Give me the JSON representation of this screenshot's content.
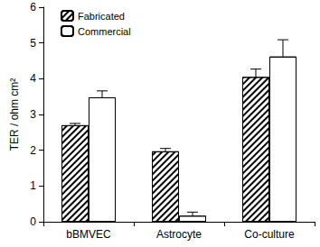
{
  "chart_data": {
    "type": "bar",
    "y_label": "TER / ohm cm²",
    "categories": [
      "bBMVEC",
      "Astrocyte",
      "Co-culture"
    ],
    "series": [
      {
        "name": "Fabricated",
        "color": "#ffffff",
        "values": [
          2.7,
          1.97,
          4.05
        ],
        "errors": [
          0.05,
          0.08,
          0.22
        ]
      },
      {
        "name": "Commercial",
        "color": "#ffffff",
        "values": [
          3.48,
          0.17,
          4.62
        ],
        "errors": [
          0.18,
          0.1,
          0.47
        ]
      }
    ],
    "ylim": [
      0,
      6
    ],
    "yticks": [
      0,
      1,
      2,
      3,
      4,
      5,
      6
    ],
    "grid": false,
    "legend": "upper left"
  }
}
